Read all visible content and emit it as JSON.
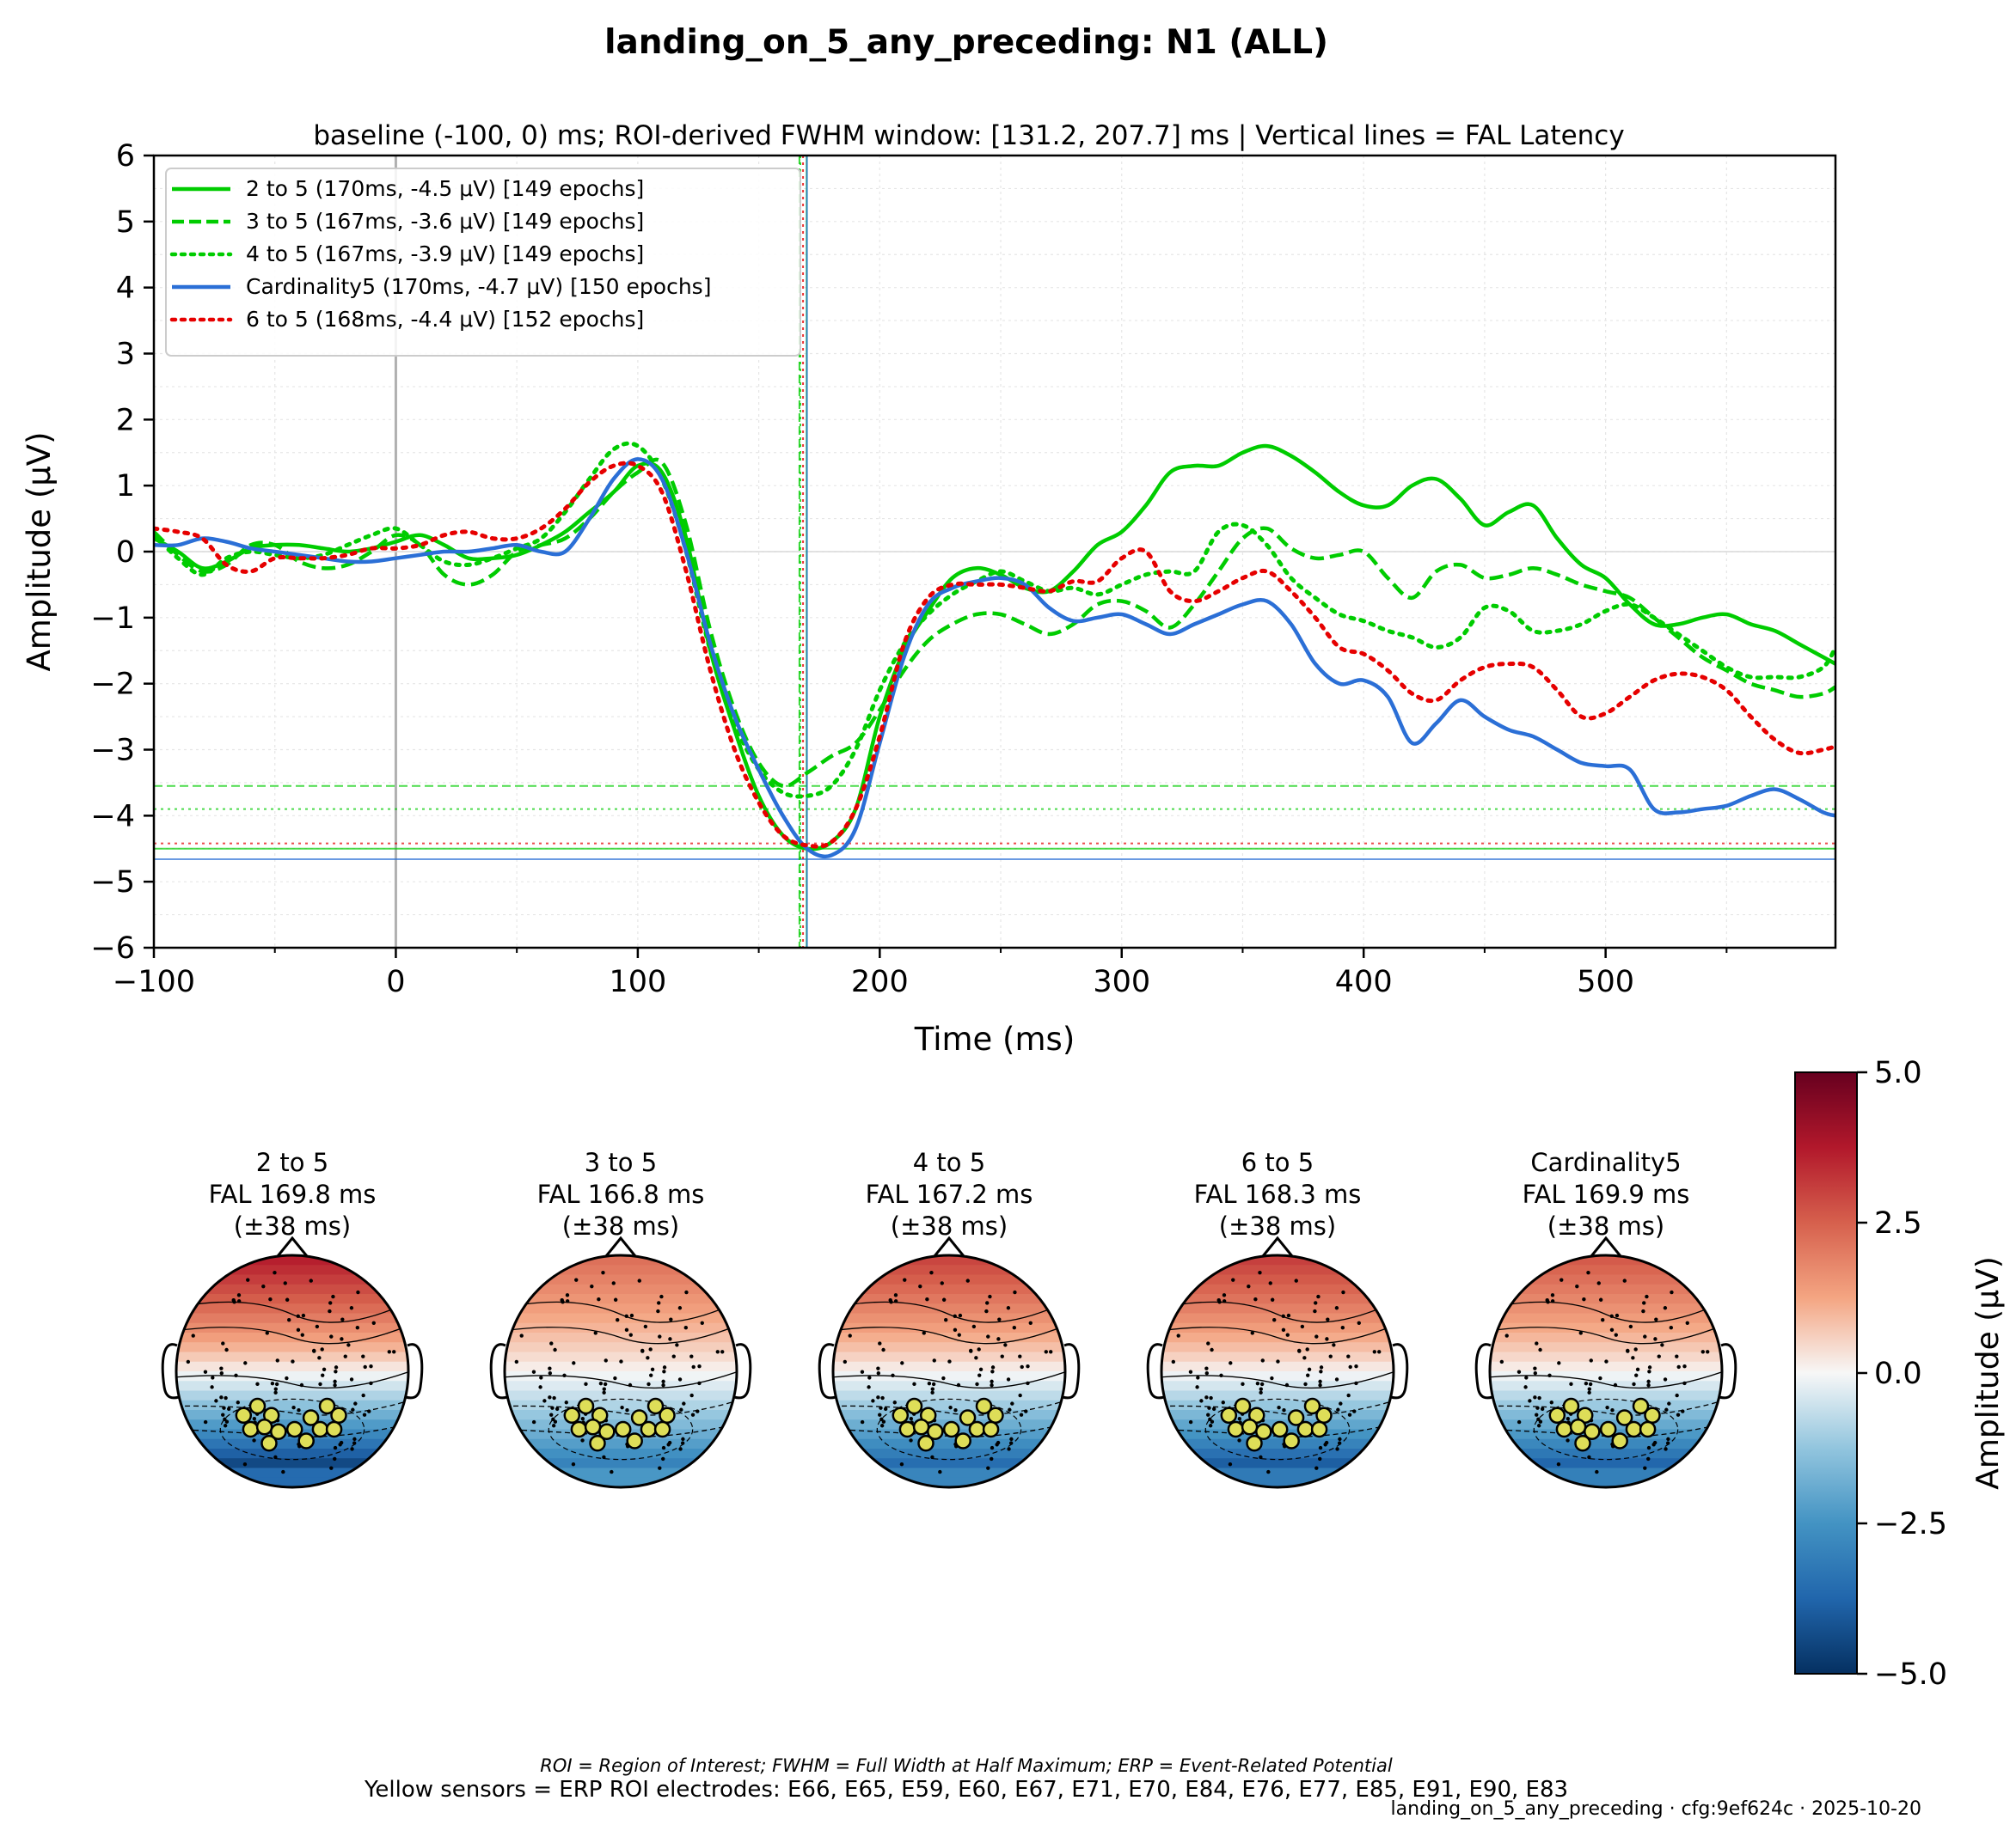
{
  "figure": {
    "title": "landing_on_5_any_preceding: N1 (ALL)",
    "footnote_1": "ROI = Region of Interest; FWHM = Full Width at Half Maximum; ERP = Event-Related Potential",
    "footnote_2": "Yellow sensors = ERP ROI electrodes: E66, E65, E59, E60, E67, E71, E70, E84, E76, E77, E85, E91, E90, E83",
    "stamp": "landing_on_5_any_preceding · cfg:9ef624c · 2025-10-20"
  },
  "colors": {
    "green": "#00cc00",
    "blue": "#2b6fd6",
    "red": "#e60000",
    "axis": "#000000",
    "grid": "#e6e6e6",
    "zero_line": "#b0b0b0",
    "electrode": "#dede58"
  },
  "chart_data": [
    {
      "type": "line",
      "subtitle": "baseline (-100, 0) ms; ROI-derived FWHM window: [131.2, 207.7] ms | Vertical lines = FAL Latency",
      "xlabel": "Time (ms)",
      "ylabel": "Amplitude (μV)",
      "xlim": [
        -100,
        595
      ],
      "ylim": [
        -6,
        6
      ],
      "xticks": [
        -100,
        0,
        100,
        200,
        300,
        400,
        500
      ],
      "xtick_labels": [
        "−100",
        "0",
        "100",
        "200",
        "300",
        "400",
        "500"
      ],
      "yticks": [
        -6,
        -5,
        -4,
        -3,
        -2,
        -1,
        0,
        1,
        2,
        3,
        4,
        5,
        6
      ],
      "ytick_labels": [
        "−6",
        "−5",
        "−4",
        "−3",
        "−2",
        "−1",
        "0",
        "1",
        "2",
        "3",
        "4",
        "5",
        "6"
      ],
      "grid": true,
      "legend_position": "upper-left",
      "series": [
        {
          "name": "2 to 5 (170ms, -4.5 μV) [149 epochs]",
          "color": "#00cc00",
          "style": "solid",
          "fal_ms": 169.8,
          "peak_uv": -4.5,
          "x": [
            -100,
            -90,
            -80,
            -70,
            -60,
            -50,
            -40,
            -30,
            -20,
            -10,
            0,
            10,
            20,
            30,
            40,
            50,
            60,
            70,
            80,
            90,
            100,
            110,
            120,
            130,
            140,
            150,
            160,
            170,
            180,
            190,
            200,
            210,
            220,
            230,
            240,
            250,
            260,
            270,
            280,
            290,
            300,
            310,
            320,
            330,
            340,
            350,
            360,
            370,
            380,
            390,
            400,
            410,
            420,
            430,
            440,
            450,
            460,
            470,
            480,
            490,
            500,
            510,
            520,
            530,
            540,
            550,
            560,
            570,
            580,
            590,
            595
          ],
          "y": [
            0.2,
            0.0,
            -0.25,
            -0.15,
            0.05,
            0.1,
            0.1,
            0.05,
            0.0,
            0.05,
            0.15,
            0.25,
            0.1,
            -0.1,
            -0.1,
            -0.05,
            0.1,
            0.3,
            0.6,
            0.9,
            1.3,
            1.2,
            0.2,
            -1.5,
            -2.7,
            -3.7,
            -4.3,
            -4.5,
            -4.4,
            -3.9,
            -2.5,
            -1.5,
            -0.9,
            -0.4,
            -0.25,
            -0.35,
            -0.55,
            -0.6,
            -0.3,
            0.1,
            0.3,
            0.7,
            1.2,
            1.3,
            1.3,
            1.5,
            1.6,
            1.45,
            1.2,
            0.9,
            0.7,
            0.7,
            1.0,
            1.1,
            0.8,
            0.4,
            0.6,
            0.7,
            0.2,
            -0.2,
            -0.4,
            -0.8,
            -1.1,
            -1.1,
            -1.0,
            -0.95,
            -1.1,
            -1.2,
            -1.4,
            -1.6,
            -1.7
          ]
        },
        {
          "name": "3 to 5 (167ms, -3.6 μV) [149 epochs]",
          "color": "#00cc00",
          "style": "dashed",
          "fal_ms": 166.8,
          "peak_uv": -3.6,
          "x": [
            -100,
            -90,
            -80,
            -70,
            -60,
            -50,
            -40,
            -30,
            -20,
            -10,
            0,
            10,
            20,
            30,
            40,
            50,
            60,
            70,
            80,
            90,
            100,
            110,
            120,
            130,
            140,
            150,
            160,
            170,
            180,
            190,
            200,
            210,
            220,
            230,
            240,
            250,
            260,
            270,
            280,
            290,
            300,
            310,
            320,
            330,
            340,
            350,
            360,
            370,
            380,
            390,
            400,
            410,
            420,
            430,
            440,
            450,
            460,
            470,
            480,
            490,
            500,
            510,
            520,
            530,
            540,
            550,
            560,
            570,
            580,
            590,
            595
          ],
          "y": [
            0.3,
            -0.05,
            -0.3,
            -0.2,
            0.1,
            0.1,
            -0.15,
            -0.25,
            -0.2,
            0.0,
            0.25,
            0.1,
            -0.35,
            -0.5,
            -0.35,
            0.0,
            0.1,
            0.2,
            0.5,
            0.9,
            1.2,
            1.35,
            0.4,
            -1.2,
            -2.4,
            -3.2,
            -3.55,
            -3.35,
            -3.1,
            -2.9,
            -2.4,
            -1.8,
            -1.35,
            -1.1,
            -0.95,
            -0.95,
            -1.1,
            -1.25,
            -1.1,
            -0.8,
            -0.75,
            -0.9,
            -1.15,
            -0.8,
            -0.3,
            0.2,
            0.35,
            0.05,
            -0.1,
            -0.05,
            0.0,
            -0.4,
            -0.7,
            -0.3,
            -0.2,
            -0.4,
            -0.35,
            -0.25,
            -0.35,
            -0.5,
            -0.6,
            -0.7,
            -1.0,
            -1.3,
            -1.6,
            -1.8,
            -2.0,
            -2.1,
            -2.2,
            -2.15,
            -2.05
          ]
        },
        {
          "name": "4 to 5 (167ms, -3.9 μV) [149 epochs]",
          "color": "#00cc00",
          "style": "dotted",
          "fal_ms": 167.2,
          "peak_uv": -3.9,
          "x": [
            -100,
            -90,
            -80,
            -70,
            -60,
            -50,
            -40,
            -30,
            -20,
            -10,
            0,
            10,
            20,
            30,
            40,
            50,
            60,
            70,
            80,
            90,
            100,
            110,
            120,
            130,
            140,
            150,
            160,
            170,
            180,
            190,
            200,
            210,
            220,
            230,
            240,
            250,
            260,
            270,
            280,
            290,
            300,
            310,
            320,
            330,
            340,
            350,
            360,
            370,
            380,
            390,
            400,
            410,
            420,
            430,
            440,
            450,
            460,
            470,
            480,
            490,
            500,
            510,
            520,
            530,
            540,
            550,
            560,
            570,
            580,
            590,
            595
          ],
          "y": [
            0.25,
            -0.1,
            -0.35,
            -0.1,
            0.0,
            -0.05,
            -0.1,
            -0.05,
            0.1,
            0.25,
            0.35,
            0.1,
            -0.15,
            -0.2,
            -0.1,
            0.05,
            0.2,
            0.6,
            1.1,
            1.55,
            1.6,
            1.1,
            0.0,
            -1.5,
            -2.6,
            -3.3,
            -3.65,
            -3.7,
            -3.55,
            -3.0,
            -2.1,
            -1.4,
            -0.95,
            -0.65,
            -0.45,
            -0.3,
            -0.45,
            -0.6,
            -0.55,
            -0.65,
            -0.5,
            -0.35,
            -0.3,
            -0.3,
            0.3,
            0.4,
            0.1,
            -0.4,
            -0.7,
            -0.95,
            -1.05,
            -1.2,
            -1.3,
            -1.45,
            -1.3,
            -0.85,
            -0.9,
            -1.2,
            -1.2,
            -1.1,
            -0.9,
            -0.8,
            -1.0,
            -1.25,
            -1.5,
            -1.75,
            -1.9,
            -1.9,
            -1.9,
            -1.75,
            -1.45
          ]
        },
        {
          "name": "Cardinality5 (170ms, -4.7 μV) [150 epochs]",
          "color": "#2b6fd6",
          "style": "solid",
          "fal_ms": 169.9,
          "peak_uv": -4.7,
          "x": [
            -100,
            -90,
            -80,
            -70,
            -60,
            -50,
            -40,
            -30,
            -20,
            -10,
            0,
            10,
            20,
            30,
            40,
            50,
            60,
            70,
            80,
            90,
            100,
            110,
            120,
            130,
            140,
            150,
            160,
            170,
            180,
            190,
            200,
            210,
            220,
            230,
            240,
            250,
            260,
            270,
            280,
            290,
            300,
            310,
            320,
            330,
            340,
            350,
            360,
            370,
            380,
            390,
            400,
            410,
            420,
            430,
            440,
            450,
            460,
            470,
            480,
            490,
            500,
            510,
            520,
            530,
            540,
            550,
            560,
            570,
            580,
            590,
            595
          ],
          "y": [
            0.1,
            0.1,
            0.2,
            0.15,
            0.05,
            0.0,
            -0.05,
            -0.1,
            -0.15,
            -0.15,
            -0.1,
            -0.05,
            -0.0,
            0.0,
            0.05,
            0.1,
            0.0,
            0.0,
            0.5,
            1.1,
            1.4,
            1.1,
            0.0,
            -1.4,
            -2.5,
            -3.3,
            -4.0,
            -4.5,
            -4.6,
            -4.2,
            -2.9,
            -1.6,
            -0.8,
            -0.55,
            -0.45,
            -0.4,
            -0.5,
            -0.85,
            -1.05,
            -1.0,
            -0.95,
            -1.1,
            -1.25,
            -1.1,
            -0.95,
            -0.8,
            -0.75,
            -1.1,
            -1.7,
            -2.0,
            -1.95,
            -2.2,
            -2.9,
            -2.6,
            -2.25,
            -2.5,
            -2.7,
            -2.8,
            -3.0,
            -3.2,
            -3.25,
            -3.3,
            -3.9,
            -3.95,
            -3.9,
            -3.85,
            -3.7,
            -3.6,
            -3.75,
            -3.95,
            -4.0
          ]
        },
        {
          "name": "6 to 5 (168ms, -4.4 μV) [152 epochs]",
          "color": "#e60000",
          "style": "dotted",
          "fal_ms": 168.3,
          "peak_uv": -4.4,
          "x": [
            -100,
            -90,
            -80,
            -70,
            -60,
            -50,
            -40,
            -30,
            -20,
            -10,
            0,
            10,
            20,
            30,
            40,
            50,
            60,
            70,
            80,
            90,
            100,
            110,
            120,
            130,
            140,
            150,
            160,
            170,
            180,
            190,
            200,
            210,
            220,
            230,
            240,
            250,
            260,
            270,
            280,
            290,
            300,
            310,
            320,
            330,
            340,
            350,
            360,
            370,
            380,
            390,
            400,
            410,
            420,
            430,
            440,
            450,
            460,
            470,
            480,
            490,
            500,
            510,
            520,
            530,
            540,
            550,
            560,
            570,
            580,
            590,
            595
          ],
          "y": [
            0.35,
            0.3,
            0.2,
            -0.2,
            -0.3,
            -0.1,
            -0.1,
            -0.1,
            -0.05,
            0.05,
            0.05,
            0.1,
            0.25,
            0.3,
            0.2,
            0.2,
            0.35,
            0.65,
            1.05,
            1.3,
            1.3,
            0.9,
            -0.3,
            -1.8,
            -3.0,
            -3.8,
            -4.3,
            -4.45,
            -4.4,
            -3.9,
            -2.8,
            -1.4,
            -0.7,
            -0.5,
            -0.5,
            -0.5,
            -0.55,
            -0.6,
            -0.45,
            -0.45,
            -0.1,
            0.0,
            -0.6,
            -0.75,
            -0.6,
            -0.4,
            -0.3,
            -0.6,
            -1.0,
            -1.45,
            -1.55,
            -1.8,
            -2.15,
            -2.25,
            -1.95,
            -1.75,
            -1.7,
            -1.75,
            -2.1,
            -2.5,
            -2.45,
            -2.2,
            -1.95,
            -1.85,
            -1.9,
            -2.1,
            -2.5,
            -2.85,
            -3.05,
            -3.0,
            -2.95
          ]
        }
      ],
      "horizontal_reference_lines": [
        {
          "series": "2 to 5",
          "y": -4.5,
          "style": "solid"
        },
        {
          "series": "3 to 5",
          "y": -3.55,
          "style": "dashed"
        },
        {
          "series": "4 to 5",
          "y": -3.9,
          "style": "dotted"
        },
        {
          "series": "Cardinality5",
          "y": -4.66,
          "style": "solid"
        },
        {
          "series": "6 to 5",
          "y": -4.42,
          "style": "dotted"
        }
      ],
      "vertical_reference_lines": [
        {
          "series": "3 to 5",
          "x": 166.8
        },
        {
          "series": "4 to 5",
          "x": 167.2
        },
        {
          "series": "6 to 5",
          "x": 168.3
        },
        {
          "series": "2 to 5",
          "x": 169.8
        },
        {
          "series": "Cardinality5",
          "x": 169.9
        }
      ]
    },
    {
      "type": "heatmap",
      "subtype": "scalp-topomaps",
      "colorbar": {
        "label": "Amplitude (μV)",
        "range": [
          -5.0,
          5.0
        ],
        "ticks": [
          "−5.0",
          "−2.5",
          "0.0",
          "2.5",
          "5.0"
        ],
        "colormap": "RdBu_r"
      },
      "maps": [
        {
          "condition": "2 to 5",
          "fal": "FAL 169.8 ms",
          "window": "(±38 ms)",
          "color": "#00cc00",
          "frontal_uv": 3.5,
          "posterior_uv": -4.5
        },
        {
          "condition": "3 to 5",
          "fal": "FAL 166.8 ms",
          "window": "(±38 ms)",
          "color": "#00cc00",
          "frontal_uv": 2.0,
          "posterior_uv": -3.0
        },
        {
          "condition": "4 to 5",
          "fal": "FAL 167.2 ms",
          "window": "(±38 ms)",
          "color": "#00cc00",
          "frontal_uv": 2.8,
          "posterior_uv": -3.6
        },
        {
          "condition": "6 to 5",
          "fal": "FAL 168.3 ms",
          "window": "(±38 ms)",
          "color": "#e60000",
          "frontal_uv": 2.9,
          "posterior_uv": -4.0
        },
        {
          "condition": "Cardinality5",
          "fal": "FAL 169.9 ms",
          "window": "(±38 ms)",
          "color": "#2b6fd6",
          "frontal_uv": 2.4,
          "posterior_uv": -3.8
        }
      ]
    }
  ]
}
